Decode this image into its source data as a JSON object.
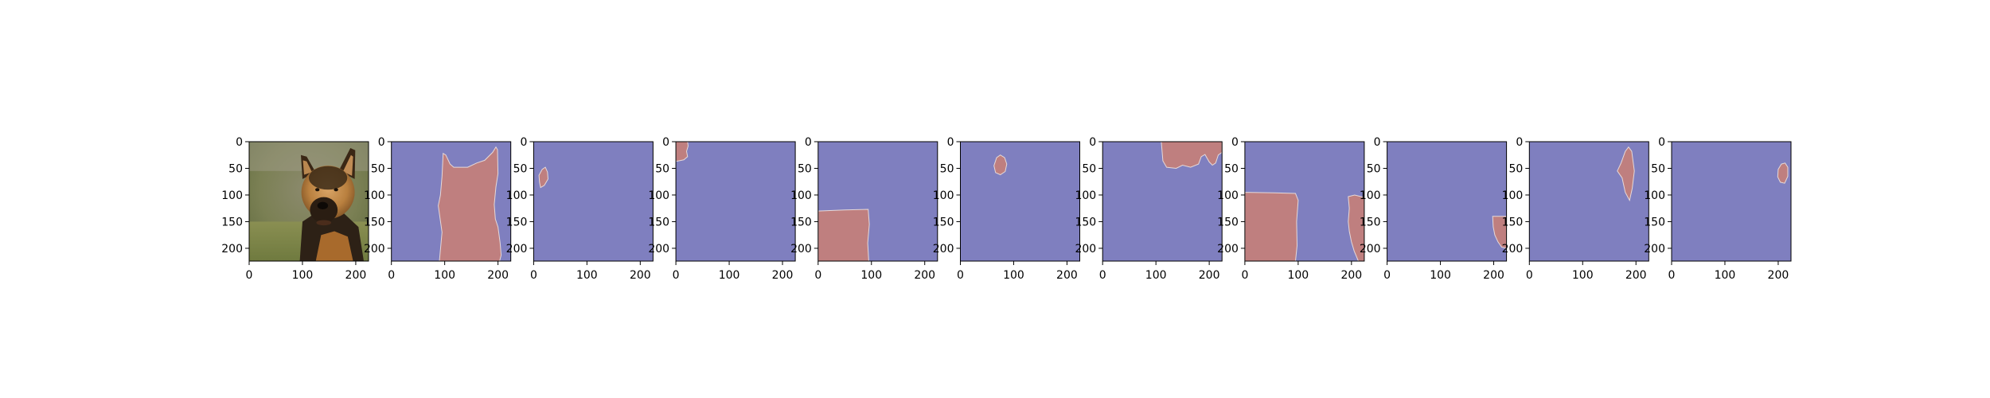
{
  "figure": {
    "background": "#ffffff",
    "panel_count": 11
  },
  "colors": {
    "mask_background": "#7f7fbf",
    "mask_region": "#bf7f7f",
    "mask_edge": "#e6d9d9",
    "axis": "#000000"
  },
  "chart_data": [
    {
      "type": "image",
      "panel": 1,
      "content": "photo of a German Shepherd dog, sunlit face on a blurred green and brown background",
      "xlim": [
        0,
        224
      ],
      "ylim": [
        224,
        0
      ],
      "xticks": [
        0,
        100,
        200
      ],
      "yticks": [
        0,
        50,
        100,
        150,
        200
      ]
    },
    {
      "type": "heatmap",
      "panel": 2,
      "values": [
        0,
        1
      ],
      "xlim": [
        0,
        224
      ],
      "ylim": [
        224,
        0
      ],
      "xticks": [
        0,
        100,
        200
      ],
      "yticks": [
        0,
        50,
        100,
        150,
        200
      ],
      "mask_polygon": [
        [
          90,
          224
        ],
        [
          95,
          170
        ],
        [
          88,
          120
        ],
        [
          92,
          100
        ],
        [
          95,
          65
        ],
        [
          97,
          22
        ],
        [
          102,
          25
        ],
        [
          110,
          42
        ],
        [
          117,
          48
        ],
        [
          143,
          48
        ],
        [
          160,
          40
        ],
        [
          175,
          35
        ],
        [
          190,
          20
        ],
        [
          196,
          10
        ],
        [
          199,
          15
        ],
        [
          200,
          60
        ],
        [
          196,
          85
        ],
        [
          193,
          118
        ],
        [
          195,
          145
        ],
        [
          200,
          160
        ],
        [
          204,
          190
        ],
        [
          206,
          213
        ],
        [
          203,
          224
        ]
      ]
    },
    {
      "type": "heatmap",
      "panel": 3,
      "values": [
        0,
        1
      ],
      "xlim": [
        0,
        224
      ],
      "ylim": [
        224,
        0
      ],
      "xticks": [
        0,
        100,
        200
      ],
      "yticks": [
        0,
        50,
        100,
        150,
        200
      ],
      "mask_polygon": [
        [
          10,
          63
        ],
        [
          16,
          52
        ],
        [
          22,
          48
        ],
        [
          26,
          57
        ],
        [
          27,
          70
        ],
        [
          20,
          82
        ],
        [
          13,
          86
        ],
        [
          11,
          76
        ]
      ]
    },
    {
      "type": "heatmap",
      "panel": 4,
      "values": [
        0,
        1
      ],
      "xlim": [
        0,
        224
      ],
      "ylim": [
        224,
        0
      ],
      "xticks": [
        0,
        100,
        200
      ],
      "yticks": [
        0,
        50,
        100,
        150,
        200
      ],
      "mask_polygon": [
        [
          0,
          0
        ],
        [
          22,
          0
        ],
        [
          23,
          8
        ],
        [
          20,
          18
        ],
        [
          22,
          28
        ],
        [
          15,
          34
        ],
        [
          5,
          36
        ],
        [
          0,
          37
        ]
      ]
    },
    {
      "type": "heatmap",
      "panel": 5,
      "values": [
        0,
        1
      ],
      "xlim": [
        0,
        224
      ],
      "ylim": [
        224,
        0
      ],
      "xticks": [
        0,
        100,
        200
      ],
      "yticks": [
        0,
        50,
        100,
        150,
        200
      ],
      "mask_polygon": [
        [
          0,
          130
        ],
        [
          50,
          128
        ],
        [
          94,
          127
        ],
        [
          96,
          155
        ],
        [
          93,
          190
        ],
        [
          95,
          224
        ],
        [
          0,
          224
        ]
      ]
    },
    {
      "type": "heatmap",
      "panel": 6,
      "values": [
        0,
        1
      ],
      "xlim": [
        0,
        224
      ],
      "ylim": [
        224,
        0
      ],
      "xticks": [
        0,
        100,
        200
      ],
      "yticks": [
        0,
        50,
        100,
        150,
        200
      ],
      "mask_polygon": [
        [
          63,
          45
        ],
        [
          68,
          30
        ],
        [
          75,
          25
        ],
        [
          83,
          30
        ],
        [
          87,
          42
        ],
        [
          84,
          56
        ],
        [
          75,
          62
        ],
        [
          66,
          58
        ]
      ]
    },
    {
      "type": "heatmap",
      "panel": 7,
      "values": [
        0,
        1
      ],
      "xlim": [
        0,
        224
      ],
      "ylim": [
        224,
        0
      ],
      "xticks": [
        0,
        100,
        200
      ],
      "yticks": [
        0,
        50,
        100,
        150,
        200
      ],
      "mask_polygon": [
        [
          110,
          0
        ],
        [
          224,
          0
        ],
        [
          224,
          20
        ],
        [
          217,
          25
        ],
        [
          212,
          40
        ],
        [
          206,
          44
        ],
        [
          200,
          38
        ],
        [
          192,
          24
        ],
        [
          185,
          28
        ],
        [
          180,
          42
        ],
        [
          165,
          48
        ],
        [
          150,
          44
        ],
        [
          138,
          50
        ],
        [
          120,
          48
        ],
        [
          113,
          36
        ]
      ]
    },
    {
      "type": "heatmap",
      "panel": 8,
      "values": [
        0,
        1
      ],
      "xlim": [
        0,
        224
      ],
      "ylim": [
        224,
        0
      ],
      "xticks": [
        0,
        100,
        200
      ],
      "yticks": [
        0,
        50,
        100,
        150,
        200
      ],
      "mask_polygon": [
        [
          0,
          95
        ],
        [
          55,
          96
        ],
        [
          95,
          97
        ],
        [
          100,
          110
        ],
        [
          97,
          150
        ],
        [
          98,
          195
        ],
        [
          95,
          224
        ],
        [
          0,
          224
        ]
      ],
      "mask_polygon_2": [
        [
          194,
          103
        ],
        [
          206,
          100
        ],
        [
          218,
          103
        ],
        [
          224,
          104
        ],
        [
          224,
          224
        ],
        [
          213,
          224
        ],
        [
          205,
          205
        ],
        [
          200,
          188
        ],
        [
          196,
          168
        ],
        [
          194,
          150
        ],
        [
          196,
          125
        ]
      ]
    },
    {
      "type": "heatmap",
      "panel": 9,
      "values": [
        0,
        1
      ],
      "xlim": [
        0,
        224
      ],
      "ylim": [
        224,
        0
      ],
      "xticks": [
        0,
        100,
        200
      ],
      "yticks": [
        0,
        50,
        100,
        150,
        200
      ],
      "mask_polygon": [
        [
          198,
          140
        ],
        [
          224,
          140
        ],
        [
          224,
          200
        ],
        [
          215,
          198
        ],
        [
          208,
          188
        ],
        [
          202,
          175
        ],
        [
          199,
          160
        ]
      ]
    },
    {
      "type": "heatmap",
      "panel": 10,
      "values": [
        0,
        1
      ],
      "xlim": [
        0,
        224
      ],
      "ylim": [
        224,
        0
      ],
      "xticks": [
        0,
        100,
        200
      ],
      "yticks": [
        0,
        50,
        100,
        150,
        200
      ],
      "mask_polygon": [
        [
          172,
          40
        ],
        [
          180,
          18
        ],
        [
          186,
          10
        ],
        [
          192,
          18
        ],
        [
          197,
          55
        ],
        [
          193,
          88
        ],
        [
          188,
          110
        ],
        [
          180,
          95
        ],
        [
          174,
          68
        ],
        [
          165,
          55
        ]
      ]
    },
    {
      "type": "heatmap",
      "panel": 11,
      "values": [
        0,
        1
      ],
      "xlim": [
        0,
        224
      ],
      "ylim": [
        224,
        0
      ],
      "xticks": [
        0,
        100,
        200
      ],
      "yticks": [
        0,
        50,
        100,
        150,
        200
      ],
      "mask_polygon": [
        [
          200,
          52
        ],
        [
          206,
          42
        ],
        [
          213,
          40
        ],
        [
          218,
          48
        ],
        [
          218,
          65
        ],
        [
          212,
          78
        ],
        [
          204,
          76
        ],
        [
          199,
          66
        ]
      ]
    }
  ]
}
